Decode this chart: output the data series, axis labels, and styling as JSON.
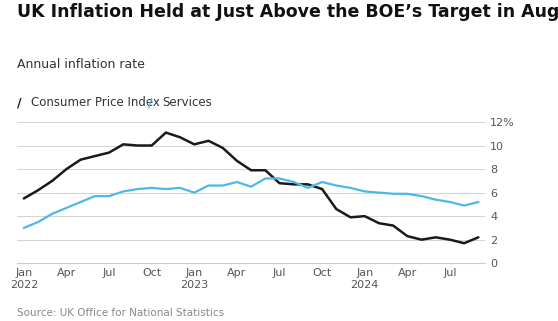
{
  "title": "UK Inflation Held at Just Above the BOE’s Target in August",
  "subtitle": "Annual inflation rate",
  "source": "Source: UK Office for National Statistics",
  "legend": [
    "Consumer Price Index",
    "Services"
  ],
  "cpi_color": "#1a1a1a",
  "services_color": "#4db8e8",
  "background_color": "#ffffff",
  "grid_color": "#cccccc",
  "ylim": [
    0,
    12
  ],
  "yticks": [
    0,
    2,
    4,
    6,
    8,
    10,
    12
  ],
  "cpi_data": [
    5.5,
    6.2,
    7.0,
    8.0,
    8.8,
    9.1,
    9.4,
    10.1,
    10.0,
    10.0,
    11.1,
    10.7,
    10.1,
    10.4,
    9.8,
    8.7,
    7.9,
    7.9,
    6.8,
    6.7,
    6.7,
    6.3,
    4.6,
    3.9,
    4.0,
    3.4,
    3.2,
    2.3,
    2.0,
    2.2,
    2.0,
    1.7,
    2.2
  ],
  "services_data": [
    3.0,
    3.5,
    4.2,
    4.7,
    5.2,
    5.7,
    5.7,
    6.1,
    6.3,
    6.4,
    6.3,
    6.4,
    6.0,
    6.6,
    6.6,
    6.9,
    6.5,
    7.2,
    7.2,
    6.9,
    6.4,
    6.9,
    6.6,
    6.4,
    6.1,
    6.0,
    5.9,
    5.9,
    5.7,
    5.4,
    5.2,
    4.9,
    5.2
  ],
  "x_tick_positions": [
    0,
    3,
    6,
    9,
    12,
    15,
    18,
    21,
    24,
    27,
    30
  ],
  "x_tick_labels": [
    "Jan\n2022",
    "Apr",
    "Jul",
    "Oct",
    "Jan\n2023",
    "Apr",
    "Jul",
    "Oct",
    "Jan\n2024",
    "Apr",
    "Jul"
  ],
  "title_fontsize": 12.5,
  "subtitle_fontsize": 9,
  "legend_fontsize": 8.5,
  "tick_fontsize": 8,
  "source_fontsize": 7.5
}
